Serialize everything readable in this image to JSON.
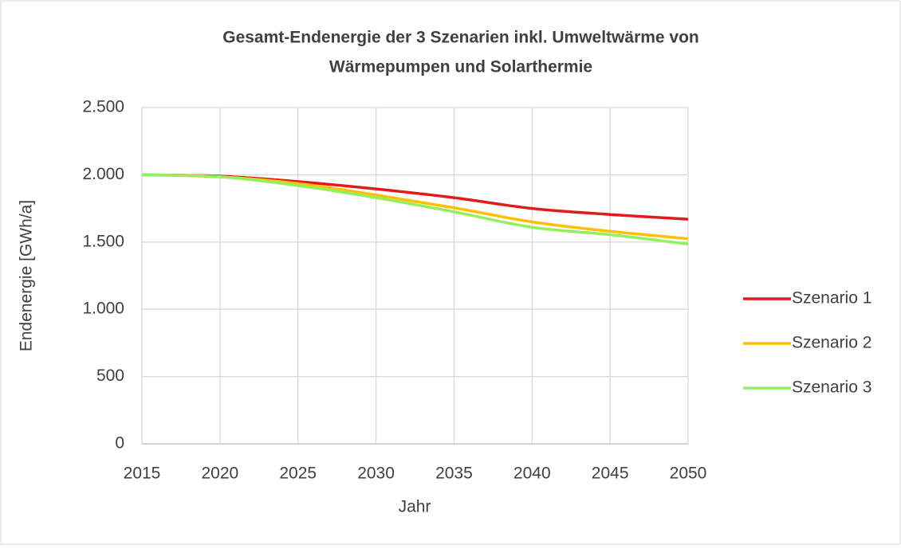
{
  "chart_data": {
    "type": "line",
    "title": [
      "Gesamt-Endenergie der 3 Szenarien inkl. Umweltwärme von",
      "Wärmepumpen und Solarthermie"
    ],
    "x_label": "Jahr",
    "y_label": "Endenergie [GWh/a]",
    "x": [
      2015,
      2020,
      2025,
      2030,
      2035,
      2040,
      2045,
      2050
    ],
    "xlim": [
      2015,
      2050
    ],
    "xticks": [
      2015,
      2020,
      2025,
      2030,
      2035,
      2040,
      2045,
      2050
    ],
    "ylim": [
      0,
      2500
    ],
    "yticks": [
      0,
      500,
      {
        "value": 1000,
        "label": "1.000"
      },
      {
        "value": 1500,
        "label": "1.500"
      },
      {
        "value": 2000,
        "label": "2.000"
      },
      {
        "value": 2500,
        "label": "2.500"
      }
    ],
    "grid": true,
    "legend": "right",
    "series": [
      {
        "name": "Szenario 1",
        "color": "#e31a1c",
        "values": [
          2000,
          1990,
          1950,
          1895,
          1830,
          1750,
          1705,
          1670
        ]
      },
      {
        "name": "Szenario 2",
        "color": "#ffc000",
        "values": [
          2000,
          1985,
          1935,
          1850,
          1755,
          1650,
          1580,
          1525
        ]
      },
      {
        "name": "Szenario 3",
        "color": "#92f060",
        "values": [
          2000,
          1985,
          1920,
          1830,
          1725,
          1610,
          1555,
          1485
        ]
      }
    ]
  }
}
